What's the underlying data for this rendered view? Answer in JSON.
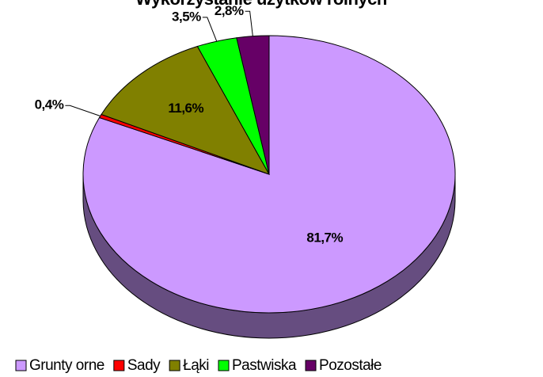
{
  "chart_data": {
    "type": "pie",
    "title": "Wykorzystanie użytków rolnych",
    "categories": [
      "Grunty orne",
      "Sady",
      "Łąki",
      "Pastwiska",
      "Pozostałe"
    ],
    "values": [
      81.7,
      0.4,
      11.6,
      3.5,
      2.8
    ],
    "value_labels": [
      "81,7%",
      "0,4%",
      "11,6%",
      "3,5%",
      "2,8%"
    ],
    "colors": [
      "#cc99ff",
      "#ff0000",
      "#808000",
      "#00ff00",
      "#660066"
    ],
    "legend": "bottom"
  }
}
